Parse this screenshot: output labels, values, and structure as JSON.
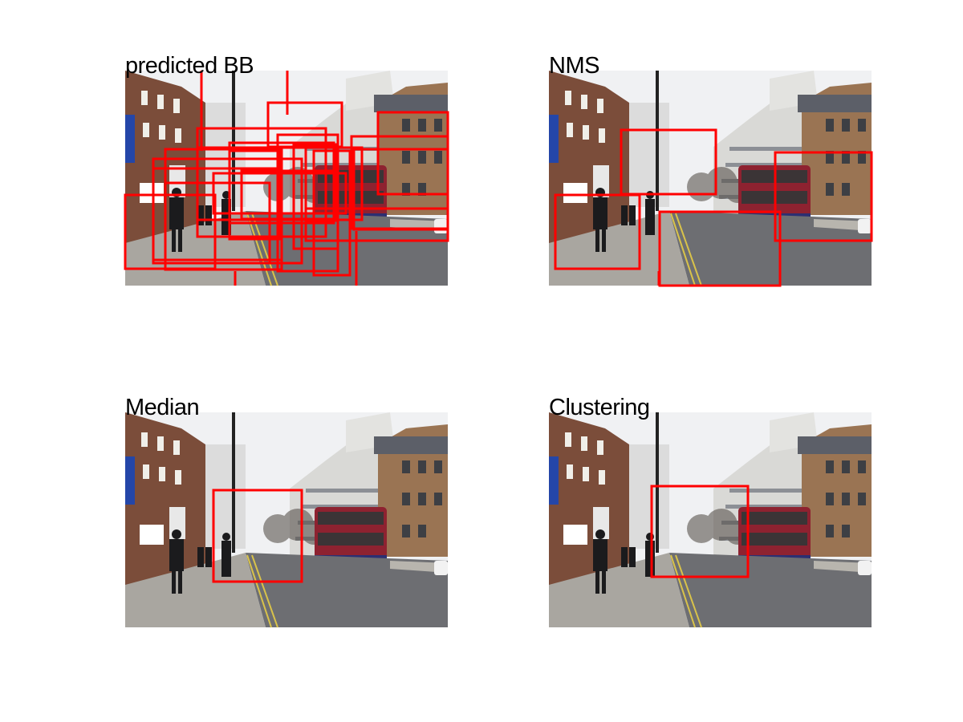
{
  "panels": [
    {
      "title": "predicted BB"
    },
    {
      "title": "NMS"
    },
    {
      "title": "Median"
    },
    {
      "title": "Clustering"
    }
  ],
  "colors": {
    "box": "#ff0000",
    "sky": "#f0f1f3",
    "road": "#6d6e72",
    "sidewalk": "#a9a6a0",
    "brick_left": "#7b4d3a",
    "brick_right": "#9a7453",
    "white_building": "#d9d9d6",
    "bus": "#8e2230",
    "bus_blue": "#2c2f72"
  }
}
